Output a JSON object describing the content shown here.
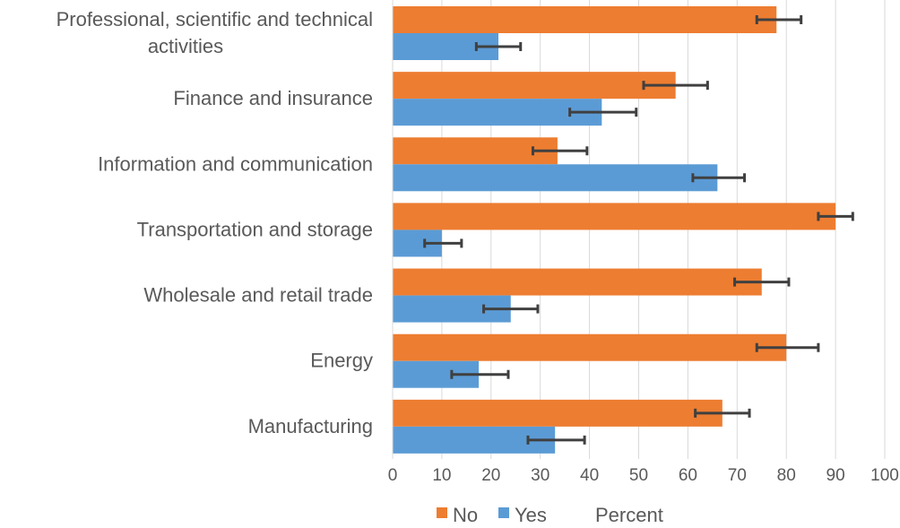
{
  "chart_data": {
    "type": "bar",
    "orientation": "horizontal",
    "categories": [
      "Professional, scientific and technical activities",
      "Finance and insurance",
      "Information and communication",
      "Transportation and storage",
      "Wholesale and retail trade",
      "Energy",
      "Manufacturing"
    ],
    "category_label_lines": [
      [
        "Professional, scientific and technical",
        "activities"
      ],
      [
        "Finance and insurance"
      ],
      [
        "Information and communication"
      ],
      [
        "Transportation and storage"
      ],
      [
        "Wholesale and retail trade"
      ],
      [
        "Energy"
      ],
      [
        "Manufacturing"
      ]
    ],
    "series": [
      {
        "name": "No",
        "color": "#ED7D31",
        "values": [
          78,
          57.5,
          33.5,
          90,
          75,
          80,
          67
        ],
        "error_low": [
          74,
          51,
          28.5,
          86.5,
          69.5,
          74,
          61.5
        ],
        "error_high": [
          83,
          64,
          39.5,
          93.5,
          80.5,
          86.5,
          72.5
        ]
      },
      {
        "name": "Yes",
        "color": "#5B9BD5",
        "values": [
          21.5,
          42.5,
          66,
          10,
          24,
          17.5,
          33
        ],
        "error_low": [
          17,
          36,
          61,
          6.5,
          18.5,
          12,
          27.5
        ],
        "error_high": [
          26,
          49.5,
          71.5,
          14,
          29.5,
          23.5,
          39
        ]
      }
    ],
    "xlim": [
      0,
      100
    ],
    "xticks": [
      "0",
      "10",
      "20",
      "30",
      "40",
      "50",
      "60",
      "70",
      "80",
      "90",
      "100"
    ],
    "xlabel": "Percent",
    "grid": true,
    "legend_position": "bottom"
  }
}
